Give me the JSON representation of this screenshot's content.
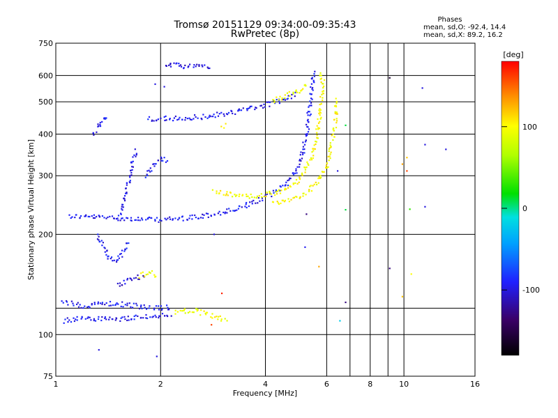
{
  "chart_data": {
    "type": "scatter",
    "title": "Tromsø 20151129 09:34:00-09:35:43",
    "subtitle": "RwPretec (8p)",
    "xlabel": "Frequency [MHz]",
    "ylabel": "Stationary phase Virtual Height [km]",
    "x_scale": "log",
    "y_scale": "log",
    "xlim": [
      1,
      16
    ],
    "ylim": [
      75,
      750
    ],
    "x_ticks": [
      1,
      2,
      4,
      6,
      8,
      10,
      16
    ],
    "x_tick_labels": [
      "1",
      "2",
      "4",
      "6",
      "8",
      "10",
      "16"
    ],
    "x_minor_gridlines": [
      7,
      9
    ],
    "y_ticks": [
      75,
      100,
      200,
      300,
      400,
      500,
      600,
      750
    ],
    "y_tick_labels": [
      "75",
      "100",
      "200",
      "300",
      "400",
      "500",
      "600",
      "750"
    ],
    "y_minor_gridlines": [
      120
    ],
    "grid": true,
    "stats": {
      "heading": "Phases",
      "line_o": "mean, sd,O: -92.4, 14.4",
      "line_x": "mean, sd,X: 89.2, 16.2"
    },
    "colorbar": {
      "label": "[deg]",
      "range": [
        -180,
        180
      ],
      "ticks": [
        100,
        0,
        -100
      ],
      "tick_labels": [
        "100",
        "0",
        "-100"
      ]
    },
    "traces": [
      {
        "phase": -95,
        "points": [
          [
            1.09,
            227
          ],
          [
            1.2,
            226
          ],
          [
            1.35,
            225
          ],
          [
            1.5,
            224
          ],
          [
            1.7,
            222
          ],
          [
            1.9,
            221
          ],
          [
            2.2,
            222
          ],
          [
            2.6,
            226
          ],
          [
            3.0,
            232
          ],
          [
            3.4,
            240
          ],
          [
            3.8,
            252
          ],
          [
            4.2,
            265
          ],
          [
            4.6,
            285
          ],
          [
            4.9,
            310
          ],
          [
            5.1,
            345
          ],
          [
            5.25,
            400
          ],
          [
            5.35,
            470
          ],
          [
            5.45,
            560
          ],
          [
            5.5,
            620
          ]
        ]
      },
      {
        "phase": 100,
        "points": [
          [
            2.85,
            268
          ],
          [
            3.2,
            263
          ],
          [
            3.6,
            260
          ],
          [
            4.0,
            262
          ],
          [
            4.4,
            268
          ],
          [
            4.8,
            280
          ],
          [
            5.1,
            300
          ],
          [
            5.35,
            330
          ],
          [
            5.55,
            370
          ],
          [
            5.7,
            430
          ],
          [
            5.8,
            510
          ],
          [
            5.85,
            580
          ],
          [
            5.7,
            620
          ]
        ]
      },
      {
        "phase": 100,
        "points": [
          [
            4.2,
            248
          ],
          [
            4.8,
            256
          ],
          [
            5.3,
            268
          ],
          [
            5.7,
            290
          ],
          [
            6.0,
            320
          ],
          [
            6.2,
            370
          ],
          [
            6.35,
            430
          ],
          [
            6.4,
            510
          ]
        ]
      },
      {
        "phase": -95,
        "points": [
          [
            1.85,
            445
          ],
          [
            2.2,
            445
          ],
          [
            2.6,
            450
          ],
          [
            3.0,
            458
          ],
          [
            3.4,
            470
          ],
          [
            3.8,
            482
          ],
          [
            4.2,
            496
          ],
          [
            4.6,
            512
          ],
          [
            4.9,
            530
          ]
        ]
      },
      {
        "phase": 95,
        "points": [
          [
            4.2,
            505
          ],
          [
            4.6,
            520
          ],
          [
            5.0,
            540
          ],
          [
            5.3,
            570
          ]
        ]
      },
      {
        "phase": -100,
        "points": [
          [
            2.05,
            645
          ],
          [
            2.4,
            640
          ],
          [
            2.8,
            640
          ]
        ]
      },
      {
        "phase": -95,
        "points": [
          [
            1.05,
            110
          ],
          [
            1.2,
            112
          ],
          [
            1.4,
            111
          ],
          [
            1.6,
            112
          ],
          [
            1.8,
            113
          ],
          [
            2.0,
            114
          ],
          [
            2.15,
            112
          ]
        ]
      },
      {
        "phase": -95,
        "points": [
          [
            1.05,
            125
          ],
          [
            1.2,
            122
          ],
          [
            1.4,
            124
          ],
          [
            1.6,
            123
          ],
          [
            1.8,
            121
          ],
          [
            2.0,
            120
          ],
          [
            2.15,
            121
          ]
        ]
      },
      {
        "phase": 95,
        "points": [
          [
            2.2,
            117
          ],
          [
            2.5,
            118
          ],
          [
            2.8,
            114
          ],
          [
            3.1,
            110
          ]
        ]
      },
      {
        "phase": -95,
        "points": [
          [
            1.32,
            200
          ],
          [
            1.38,
            185
          ],
          [
            1.42,
            170
          ],
          [
            1.48,
            165
          ],
          [
            1.55,
            175
          ],
          [
            1.62,
            190
          ]
        ]
      },
      {
        "phase": -95,
        "points": [
          [
            1.52,
            230
          ],
          [
            1.58,
            260
          ],
          [
            1.62,
            290
          ],
          [
            1.66,
            330
          ],
          [
            1.7,
            360
          ]
        ]
      },
      {
        "phase": -95,
        "points": [
          [
            1.8,
            300
          ],
          [
            1.9,
            320
          ],
          [
            2.0,
            340
          ],
          [
            2.1,
            330
          ]
        ]
      },
      {
        "phase": -105,
        "points": [
          [
            1.5,
            140
          ],
          [
            1.6,
            145
          ],
          [
            1.7,
            148
          ],
          [
            1.8,
            150
          ]
        ]
      },
      {
        "phase": 95,
        "points": [
          [
            1.75,
            150
          ],
          [
            1.85,
            155
          ],
          [
            1.95,
            150
          ]
        ]
      },
      {
        "phase": -95,
        "points": [
          [
            1.28,
            400
          ],
          [
            1.35,
            440
          ],
          [
            1.42,
            455
          ]
        ]
      },
      {
        "phase": 100,
        "points": [
          [
            3.0,
            420
          ],
          [
            3.1,
            425
          ]
        ]
      }
    ],
    "isolated_points": [
      {
        "x": 1.33,
        "y": 90,
        "phase": -100
      },
      {
        "x": 1.95,
        "y": 86,
        "phase": -100
      },
      {
        "x": 2.05,
        "y": 555,
        "phase": -100
      },
      {
        "x": 1.93,
        "y": 565,
        "phase": -100
      },
      {
        "x": 2.8,
        "y": 107,
        "phase": 160
      },
      {
        "x": 2.85,
        "y": 200,
        "phase": -100
      },
      {
        "x": 3.0,
        "y": 133,
        "phase": 170
      },
      {
        "x": 5.2,
        "y": 183,
        "phase": -95
      },
      {
        "x": 5.25,
        "y": 230,
        "phase": -130
      },
      {
        "x": 5.7,
        "y": 160,
        "phase": 130
      },
      {
        "x": 6.45,
        "y": 310,
        "phase": -100
      },
      {
        "x": 6.55,
        "y": 110,
        "phase": -20
      },
      {
        "x": 6.8,
        "y": 425,
        "phase": 10
      },
      {
        "x": 6.8,
        "y": 237,
        "phase": 10
      },
      {
        "x": 6.8,
        "y": 125,
        "phase": -130
      },
      {
        "x": 9.1,
        "y": 590,
        "phase": -160
      },
      {
        "x": 9.1,
        "y": 158,
        "phase": -130
      },
      {
        "x": 9.9,
        "y": 325,
        "phase": 130
      },
      {
        "x": 9.9,
        "y": 130,
        "phase": 120
      },
      {
        "x": 10.2,
        "y": 340,
        "phase": 120
      },
      {
        "x": 10.2,
        "y": 310,
        "phase": 160
      },
      {
        "x": 10.4,
        "y": 238,
        "phase": 30
      },
      {
        "x": 10.5,
        "y": 152,
        "phase": 100
      },
      {
        "x": 11.3,
        "y": 550,
        "phase": -100
      },
      {
        "x": 11.5,
        "y": 372,
        "phase": -100
      },
      {
        "x": 11.5,
        "y": 242,
        "phase": -100
      },
      {
        "x": 13.2,
        "y": 360,
        "phase": -100
      }
    ]
  }
}
